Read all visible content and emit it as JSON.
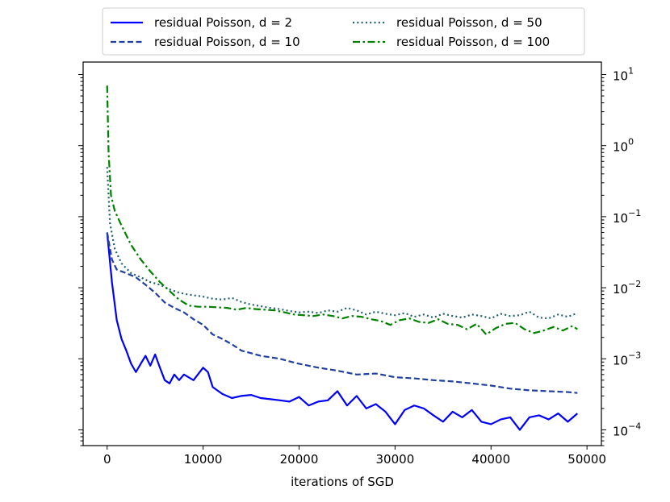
{
  "chart_data": {
    "type": "line",
    "title": "",
    "xlabel": "iterations of SGD",
    "ylabel": "",
    "yscale": "log",
    "yaxis_side": "right",
    "xlim": [
      -2500,
      51500
    ],
    "ylim": [
      6e-05,
      15
    ],
    "x_ticks": [
      0,
      10000,
      20000,
      30000,
      40000,
      50000
    ],
    "x_tick_labels": [
      "0",
      "10000",
      "20000",
      "30000",
      "40000",
      "50000"
    ],
    "y_ticks": [
      {
        "value": 10,
        "base": "10",
        "exp": "1"
      },
      {
        "value": 1,
        "base": "10",
        "exp": "0"
      },
      {
        "value": 0.1,
        "base": "10",
        "exp": "−1"
      },
      {
        "value": 0.01,
        "base": "10",
        "exp": "−2"
      },
      {
        "value": 0.001,
        "base": "10",
        "exp": "−3"
      },
      {
        "value": 0.0001,
        "base": "10",
        "exp": "−4"
      }
    ],
    "legend_position": "top-center-outside",
    "series": [
      {
        "name": "residual Poisson, d = 2",
        "color": "#0000ff",
        "dash": "solid",
        "x": [
          0,
          500,
          1000,
          1500,
          2000,
          2500,
          3000,
          3500,
          4000,
          4500,
          5000,
          5500,
          6000,
          6500,
          7000,
          7500,
          8000,
          9000,
          10000,
          10500,
          11000,
          12000,
          13000,
          14000,
          15000,
          16000,
          17000,
          18000,
          19000,
          20000,
          21000,
          22000,
          23000,
          24000,
          25000,
          26000,
          27000,
          28000,
          29000,
          30000,
          31000,
          32000,
          33000,
          34000,
          35000,
          36000,
          37000,
          38000,
          39000,
          40000,
          41000,
          42000,
          43000,
          44000,
          45000,
          46000,
          47000,
          48000,
          49000
        ],
        "y": [
          0.06,
          0.012,
          0.0035,
          0.0019,
          0.0013,
          0.00085,
          0.00065,
          0.00085,
          0.0011,
          0.0008,
          0.00115,
          0.00075,
          0.0005,
          0.00045,
          0.0006,
          0.0005,
          0.0006,
          0.0005,
          0.00075,
          0.00065,
          0.0004,
          0.00032,
          0.00028,
          0.0003,
          0.00031,
          0.00028,
          0.00027,
          0.00026,
          0.00025,
          0.00029,
          0.00022,
          0.00025,
          0.00026,
          0.00035,
          0.00022,
          0.0003,
          0.0002,
          0.00023,
          0.00018,
          0.00012,
          0.00019,
          0.00022,
          0.0002,
          0.00016,
          0.00013,
          0.00018,
          0.00015,
          0.00019,
          0.00013,
          0.00012,
          0.00014,
          0.00015,
          0.0001,
          0.00015,
          0.00016,
          0.00014,
          0.00017,
          0.00013,
          0.00017
        ]
      },
      {
        "name": "residual Poisson, d = 10",
        "color": "#1f3fa0",
        "dash": "dashed",
        "x": [
          0,
          500,
          1000,
          2000,
          3000,
          4000,
          5000,
          6000,
          7000,
          8000,
          9000,
          10000,
          11000,
          12000,
          13000,
          14000,
          15000,
          16000,
          17000,
          18000,
          19000,
          20000,
          22000,
          24000,
          26000,
          28000,
          30000,
          32000,
          34000,
          36000,
          38000,
          40000,
          42000,
          44000,
          46000,
          48000,
          49000
        ],
        "y": [
          0.06,
          0.025,
          0.018,
          0.016,
          0.014,
          0.011,
          0.0085,
          0.0062,
          0.0052,
          0.0045,
          0.0036,
          0.003,
          0.0022,
          0.0019,
          0.0016,
          0.0013,
          0.0012,
          0.0011,
          0.00105,
          0.001,
          0.00092,
          0.00085,
          0.00075,
          0.00068,
          0.0006,
          0.00062,
          0.00055,
          0.00053,
          0.0005,
          0.00048,
          0.00045,
          0.00042,
          0.00038,
          0.00036,
          0.00035,
          0.00034,
          0.00033
        ]
      },
      {
        "name": "residual Poisson, d = 50",
        "color": "#1f5f6f",
        "dash": "dotted",
        "x": [
          0,
          300,
          800,
          1500,
          2500,
          3500,
          4500,
          5500,
          6500,
          7500,
          8500,
          10000,
          11000,
          12000,
          13000,
          14000,
          15000,
          16000,
          17000,
          18000,
          19000,
          20000,
          21000,
          22000,
          23000,
          24000,
          25000,
          26000,
          27000,
          28000,
          29000,
          30000,
          31000,
          32000,
          33000,
          34000,
          35000,
          36000,
          37000,
          38000,
          39000,
          40000,
          41000,
          42000,
          43000,
          44000,
          45000,
          46000,
          47000,
          48000,
          49000
        ],
        "y": [
          0.5,
          0.08,
          0.035,
          0.022,
          0.016,
          0.014,
          0.012,
          0.011,
          0.0095,
          0.0085,
          0.008,
          0.0075,
          0.007,
          0.0068,
          0.0072,
          0.0063,
          0.0058,
          0.0055,
          0.0052,
          0.005,
          0.0047,
          0.0045,
          0.0046,
          0.0044,
          0.0048,
          0.0046,
          0.0052,
          0.0048,
          0.0042,
          0.0046,
          0.0043,
          0.0041,
          0.0044,
          0.0039,
          0.0042,
          0.0038,
          0.0043,
          0.004,
          0.0038,
          0.0042,
          0.004,
          0.0037,
          0.0043,
          0.004,
          0.0041,
          0.0046,
          0.0038,
          0.0037,
          0.0042,
          0.0039,
          0.0044
        ]
      },
      {
        "name": "residual Poisson, d = 100",
        "color": "#008000",
        "dash": "dashdot",
        "x": [
          0,
          150,
          400,
          800,
          1500,
          2500,
          3500,
          4500,
          5500,
          6500,
          7500,
          8500,
          9500,
          10500,
          11500,
          12500,
          13500,
          14500,
          15500,
          16500,
          17500,
          18500,
          19500,
          20500,
          21500,
          22500,
          23500,
          24500,
          25500,
          26500,
          27500,
          28500,
          29500,
          30500,
          31500,
          32500,
          33500,
          34500,
          35500,
          36500,
          37500,
          38500,
          39500,
          40500,
          41500,
          42500,
          43500,
          44500,
          45500,
          46500,
          47500,
          48500,
          49000
        ],
        "y": [
          7.0,
          0.8,
          0.2,
          0.12,
          0.075,
          0.04,
          0.025,
          0.017,
          0.012,
          0.009,
          0.0068,
          0.0056,
          0.0054,
          0.0054,
          0.0053,
          0.0052,
          0.0049,
          0.0052,
          0.005,
          0.0049,
          0.0048,
          0.0045,
          0.0042,
          0.0041,
          0.004,
          0.0042,
          0.004,
          0.0037,
          0.004,
          0.0039,
          0.0036,
          0.0034,
          0.003,
          0.0035,
          0.0037,
          0.0033,
          0.0032,
          0.0036,
          0.0031,
          0.003,
          0.0026,
          0.0031,
          0.0022,
          0.0027,
          0.0031,
          0.0032,
          0.0026,
          0.0023,
          0.0025,
          0.0028,
          0.0025,
          0.0029,
          0.0026
        ]
      }
    ]
  }
}
